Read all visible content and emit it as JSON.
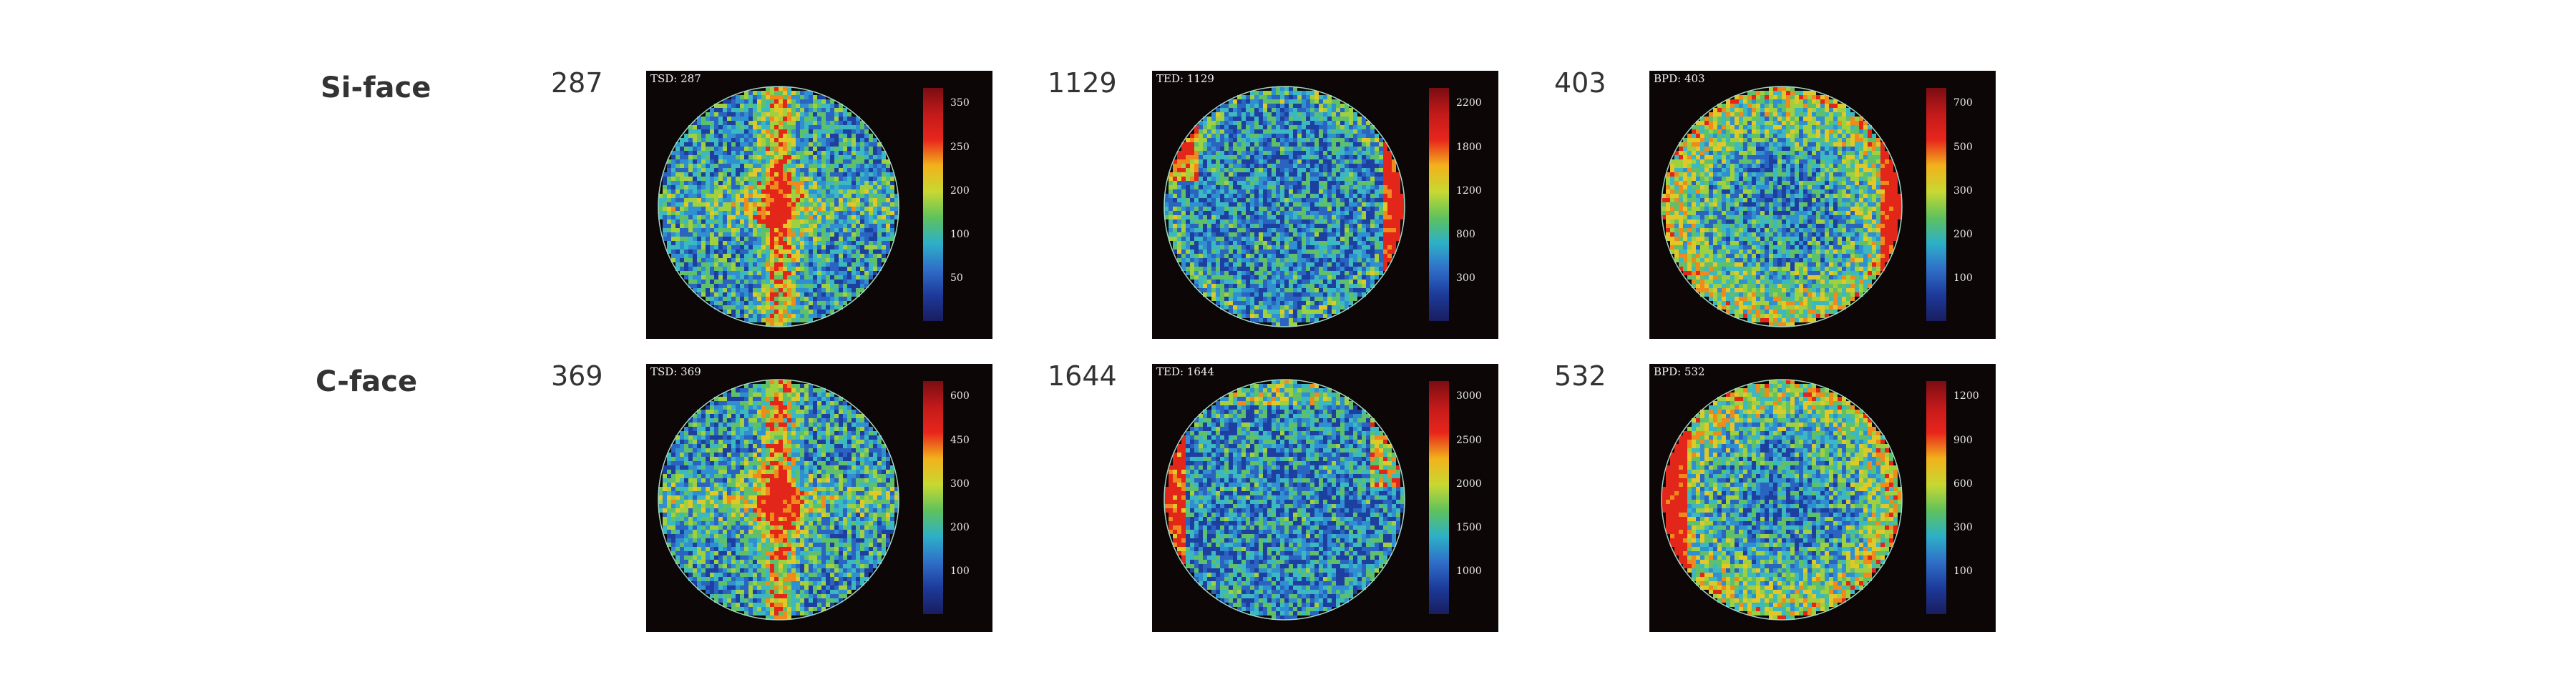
{
  "rows": [
    {
      "label": "Si-face",
      "panels": [
        {
          "count": "287",
          "title": "TSD: 287",
          "ticks": [
            "350",
            "250",
            "200",
            "100",
            "50"
          ]
        },
        {
          "count": "1129",
          "title": "TED: 1129",
          "ticks": [
            "2200",
            "1800",
            "1200",
            "800",
            "300"
          ]
        },
        {
          "count": "403",
          "title": "BPD: 403",
          "ticks": [
            "700",
            "500",
            "300",
            "200",
            "100"
          ]
        }
      ]
    },
    {
      "label": "C-face",
      "panels": [
        {
          "count": "369",
          "title": "TSD: 369",
          "ticks": [
            "600",
            "450",
            "300",
            "200",
            "100"
          ]
        },
        {
          "count": "1644",
          "title": "TED: 1644",
          "ticks": [
            "3000",
            "2500",
            "2000",
            "1500",
            "1000"
          ]
        },
        {
          "count": "532",
          "title": "BPD: 532",
          "ticks": [
            "1200",
            "900",
            "600",
            "300",
            "100"
          ]
        }
      ]
    }
  ],
  "colorbar": {
    "colors": [
      "#7a0d12",
      "#c21a1a",
      "#e8261c",
      "#f2b21c",
      "#c8d832",
      "#5fc25c",
      "#2db0c8",
      "#2f6fc8",
      "#1d3a9a",
      "#191d5e"
    ]
  }
}
